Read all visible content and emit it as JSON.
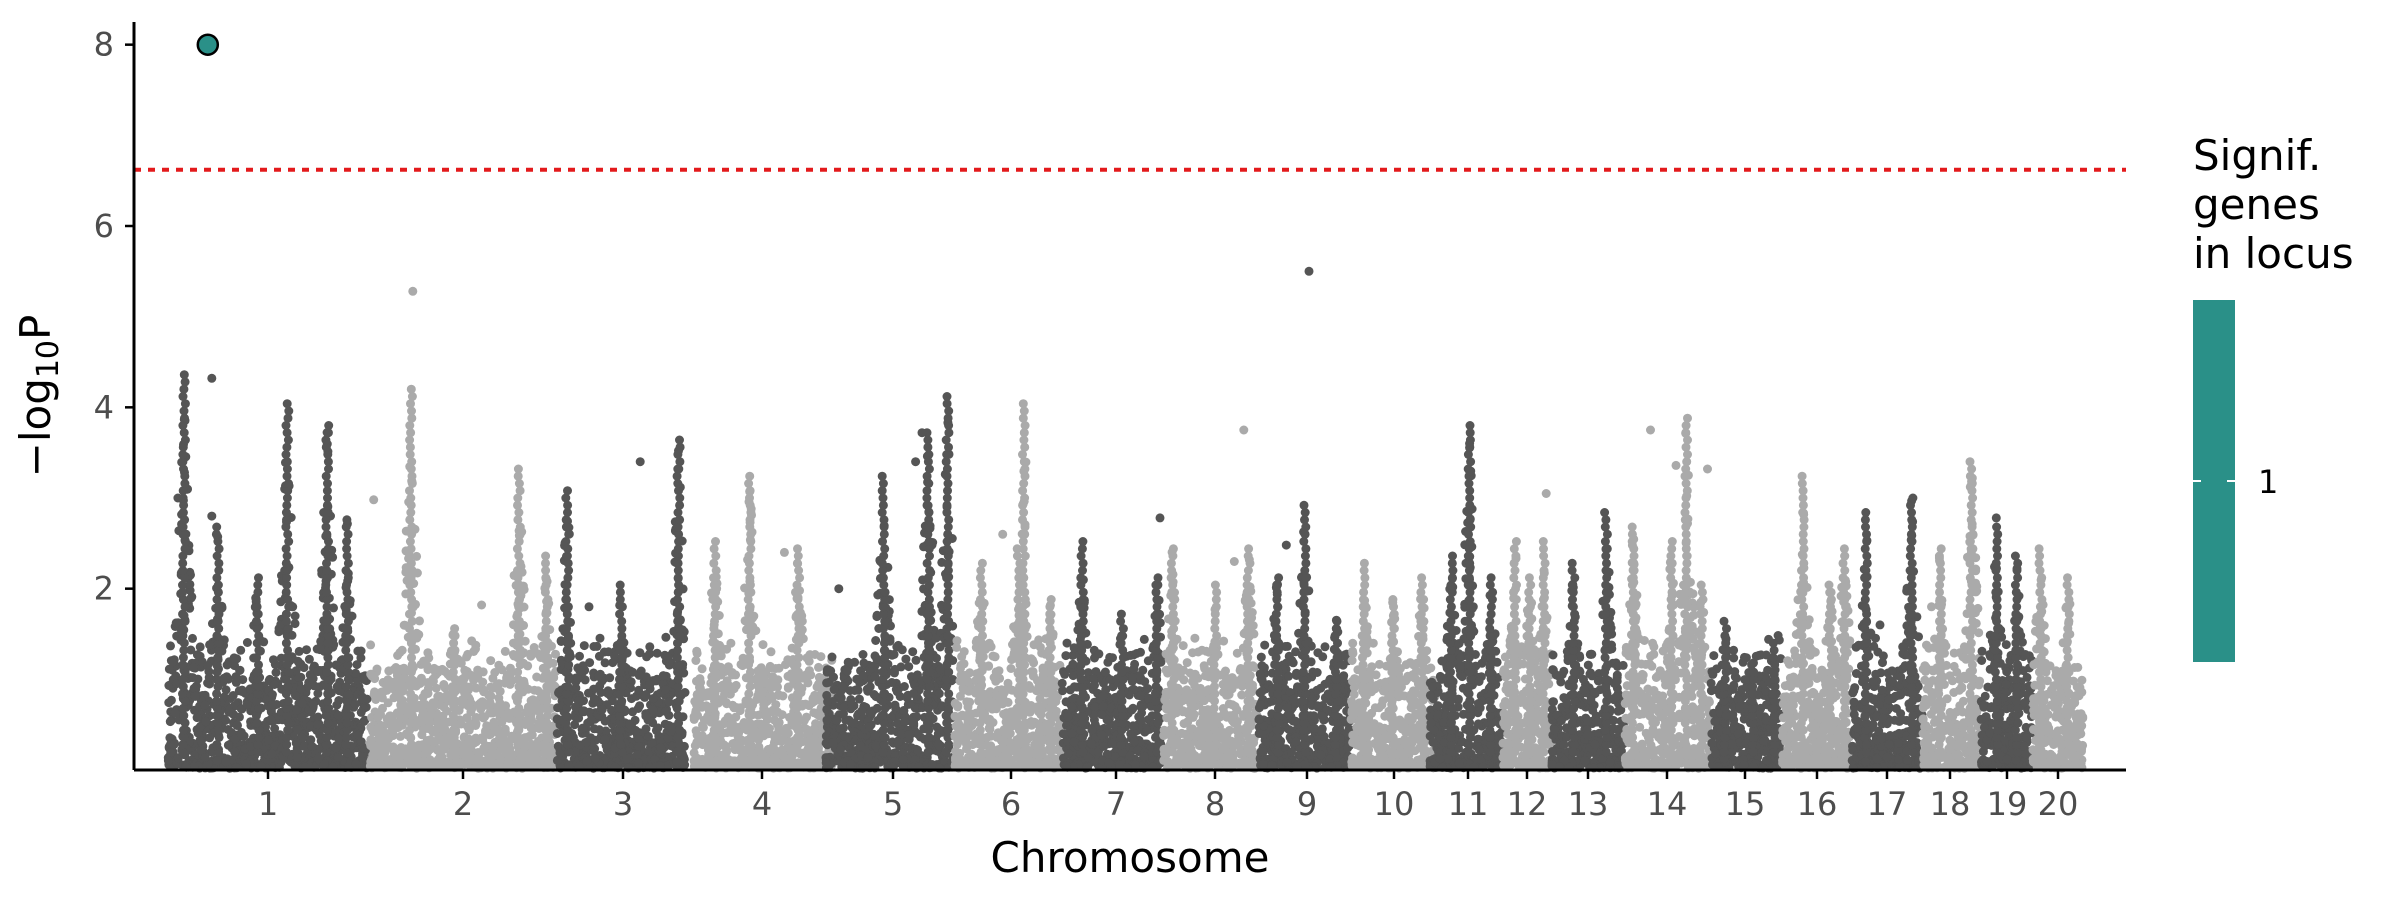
{
  "chart_data": {
    "type": "scatter",
    "title": "",
    "xlabel": "Chromosome",
    "ylabel": "−log10P",
    "ylim": [
      0,
      8.25
    ],
    "y_ticks": [
      2,
      4,
      6,
      8
    ],
    "x_tick_labels": [
      "1",
      "2",
      "3",
      "4",
      "5",
      "6",
      "7",
      "8",
      "9",
      "10",
      "11",
      "12",
      "13",
      "14",
      "15",
      "16",
      "17",
      "18",
      "19",
      "20"
    ],
    "significance_threshold": 6.62,
    "threshold_color": "#e31a1c",
    "chromosome_colors": [
      "#555555",
      "#aaaaaa"
    ],
    "chromosomes": [
      {
        "label": "1",
        "max": 4.4,
        "peaks": [
          [
            0.08,
            4.4
          ],
          [
            0.25,
            2.7
          ],
          [
            0.45,
            2.2
          ],
          [
            0.6,
            4.05
          ],
          [
            0.8,
            3.85
          ],
          [
            0.9,
            2.8
          ]
        ],
        "outliers": [
          [
            0.05,
            3.0
          ],
          [
            0.22,
            4.32
          ],
          [
            0.22,
            2.8
          ]
        ]
      },
      {
        "label": "2",
        "max": 4.25,
        "peaks": [
          [
            0.22,
            4.25
          ],
          [
            0.45,
            1.6
          ],
          [
            0.8,
            3.4
          ],
          [
            0.95,
            2.4
          ]
        ],
        "outliers": [
          [
            0.02,
            2.98
          ],
          [
            0.23,
            5.28
          ],
          [
            0.6,
            1.82
          ]
        ]
      },
      {
        "label": "3",
        "max": 3.7,
        "peaks": [
          [
            0.08,
            3.1
          ],
          [
            0.5,
            2.1
          ],
          [
            0.95,
            3.7
          ]
        ],
        "outliers": [
          [
            0.65,
            3.4
          ],
          [
            0.25,
            1.8
          ]
        ]
      },
      {
        "label": "4",
        "max": 3.25,
        "peaks": [
          [
            0.15,
            2.6
          ],
          [
            0.4,
            3.25
          ],
          [
            0.75,
            2.5
          ]
        ],
        "outliers": [
          [
            0.65,
            2.4
          ]
        ]
      },
      {
        "label": "5",
        "max": 4.15,
        "peaks": [
          [
            0.45,
            3.3
          ],
          [
            0.8,
            3.8
          ],
          [
            0.95,
            4.15
          ]
        ],
        "outliers": [
          [
            0.75,
            3.72
          ],
          [
            0.7,
            3.4
          ],
          [
            0.1,
            2.0
          ]
        ]
      },
      {
        "label": "6",
        "max": 4.05,
        "peaks": [
          [
            0.25,
            2.3
          ],
          [
            0.6,
            2.5
          ],
          [
            0.65,
            4.05
          ],
          [
            0.9,
            1.9
          ]
        ],
        "outliers": [
          [
            0.45,
            2.6
          ]
        ]
      },
      {
        "label": "7",
        "max": 2.55,
        "peaks": [
          [
            0.2,
            2.55
          ],
          [
            0.6,
            1.8
          ],
          [
            0.95,
            2.2
          ]
        ],
        "outliers": [
          [
            0.98,
            2.78
          ],
          [
            0.05,
            1.4
          ]
        ]
      },
      {
        "label": "8",
        "max": 2.55,
        "peaks": [
          [
            0.1,
            2.5
          ],
          [
            0.55,
            2.1
          ],
          [
            0.9,
            2.5
          ]
        ],
        "outliers": [
          [
            0.85,
            3.75
          ],
          [
            0.75,
            2.3
          ]
        ]
      },
      {
        "label": "9",
        "max": 2.95,
        "peaks": [
          [
            0.2,
            2.2
          ],
          [
            0.5,
            2.95
          ],
          [
            0.85,
            1.7
          ]
        ],
        "outliers": [
          [
            0.3,
            2.48
          ],
          [
            0.55,
            5.5
          ]
        ]
      },
      {
        "label": "10",
        "max": 2.3,
        "peaks": [
          [
            0.15,
            2.3
          ],
          [
            0.5,
            1.9
          ],
          [
            0.85,
            2.2
          ]
        ],
        "outliers": []
      },
      {
        "label": "11",
        "max": 3.85,
        "peaks": [
          [
            0.3,
            2.4
          ],
          [
            0.55,
            3.85
          ],
          [
            0.85,
            2.2
          ]
        ],
        "outliers": [
          [
            0.55,
            3.6
          ],
          [
            0.55,
            3.3
          ]
        ]
      },
      {
        "label": "12",
        "max": 2.6,
        "peaks": [
          [
            0.25,
            2.6
          ],
          [
            0.55,
            2.2
          ],
          [
            0.85,
            2.6
          ]
        ],
        "outliers": [
          [
            0.9,
            3.05
          ],
          [
            0.9,
            0.45
          ]
        ]
      },
      {
        "label": "13",
        "max": 2.85,
        "peaks": [
          [
            0.3,
            2.3
          ],
          [
            0.75,
            2.85
          ]
        ],
        "outliers": []
      },
      {
        "label": "14",
        "max": 3.95,
        "peaks": [
          [
            0.1,
            2.75
          ],
          [
            0.55,
            2.6
          ],
          [
            0.72,
            3.95
          ],
          [
            0.9,
            2.1
          ]
        ],
        "outliers": [
          [
            0.3,
            3.75
          ],
          [
            0.6,
            3.36
          ],
          [
            0.97,
            3.32
          ]
        ]
      },
      {
        "label": "15",
        "max": 1.7,
        "peaks": [
          [
            0.2,
            1.7
          ],
          [
            0.6,
            1.2
          ],
          [
            0.9,
            1.45
          ]
        ],
        "outliers": []
      },
      {
        "label": "16",
        "max": 3.3,
        "peaks": [
          [
            0.3,
            3.3
          ],
          [
            0.7,
            2.1
          ],
          [
            0.9,
            2.5
          ]
        ],
        "outliers": []
      },
      {
        "label": "17",
        "max": 3.05,
        "peaks": [
          [
            0.2,
            2.9
          ],
          [
            0.85,
            3.05
          ]
        ],
        "outliers": [
          [
            0.4,
            1.6
          ]
        ]
      },
      {
        "label": "18",
        "max": 3.45,
        "peaks": [
          [
            0.3,
            2.5
          ],
          [
            0.85,
            3.45
          ]
        ],
        "outliers": [
          [
            0.85,
            3.15
          ],
          [
            0.15,
            1.8
          ]
        ]
      },
      {
        "label": "19",
        "max": 2.7,
        "peaks": [
          [
            0.3,
            2.7
          ],
          [
            0.7,
            2.4
          ]
        ],
        "outliers": [
          [
            0.3,
            2.78
          ]
        ]
      },
      {
        "label": "20",
        "max": 2.5,
        "peaks": [
          [
            0.15,
            2.5
          ],
          [
            0.7,
            2.2
          ]
        ],
        "outliers": []
      }
    ],
    "highlighted_points": [
      {
        "chromosome": "1",
        "position": 0.2,
        "y": 8.0,
        "color": "#2a9088",
        "significant_genes": 1
      }
    ],
    "legend": {
      "title": [
        "Signif.",
        "genes",
        "in locus"
      ],
      "values": [
        "1"
      ],
      "color": "#2a9088",
      "position": "right"
    }
  }
}
